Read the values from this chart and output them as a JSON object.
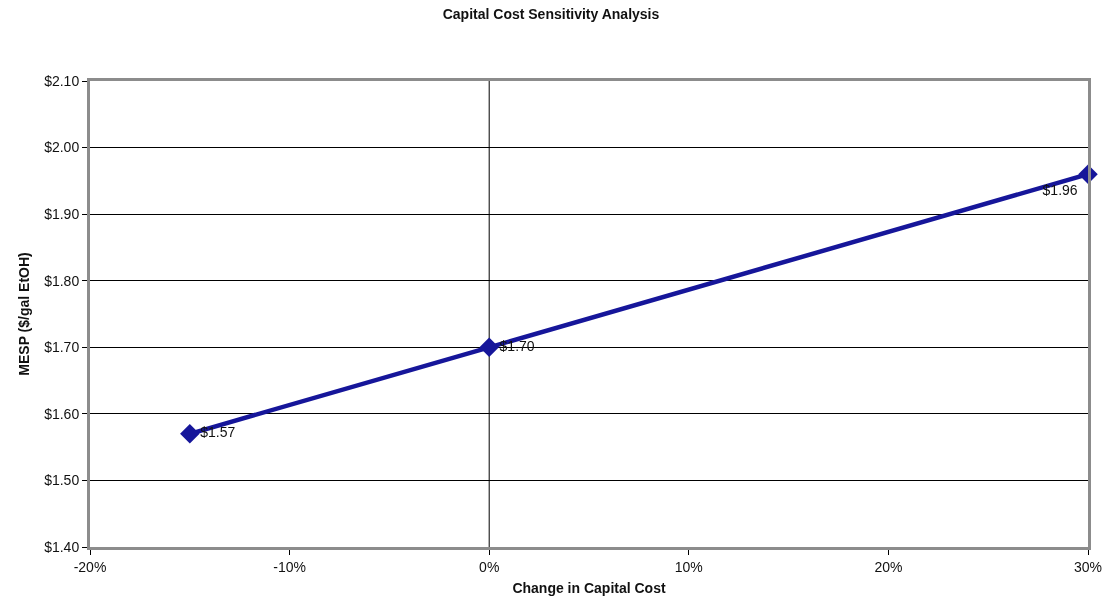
{
  "chart_data": {
    "type": "line",
    "title": "Capital Cost Sensitivity Analysis",
    "xlabel": "Change in Capital Cost",
    "ylabel": "MESP ($/gal EtOH)",
    "x": [
      -15,
      0,
      30
    ],
    "series": [
      {
        "color": "#16169a",
        "values": [
          1.57,
          1.7,
          1.96
        ],
        "value_labels": [
          "$1.57",
          "$1.70",
          "$1.96"
        ]
      }
    ],
    "xlim": [
      -20,
      30
    ],
    "xticks": [
      {
        "value": -20,
        "label": "-20%"
      },
      {
        "value": -10,
        "label": "-10%"
      },
      {
        "value": 0,
        "label": "0%"
      },
      {
        "value": 10,
        "label": "10%"
      },
      {
        "value": 20,
        "label": "20%"
      },
      {
        "value": 30,
        "label": "30%"
      }
    ],
    "ylim": [
      1.4,
      2.1
    ],
    "yticks": [
      {
        "value": 1.4,
        "label": "$1.40"
      },
      {
        "value": 1.5,
        "label": "$1.50"
      },
      {
        "value": 1.6,
        "label": "$1.60"
      },
      {
        "value": 1.7,
        "label": "$1.70"
      },
      {
        "value": 1.8,
        "label": "$1.80"
      },
      {
        "value": 1.9,
        "label": "$1.90"
      },
      {
        "value": 2.0,
        "label": "$2.00"
      },
      {
        "value": 2.1,
        "label": "$2.10"
      }
    ],
    "ref_lines": [
      {
        "axis": "x",
        "value": 0,
        "color": "#000000"
      }
    ],
    "grid": "y",
    "marker": "diamond",
    "line_style": "solid"
  }
}
